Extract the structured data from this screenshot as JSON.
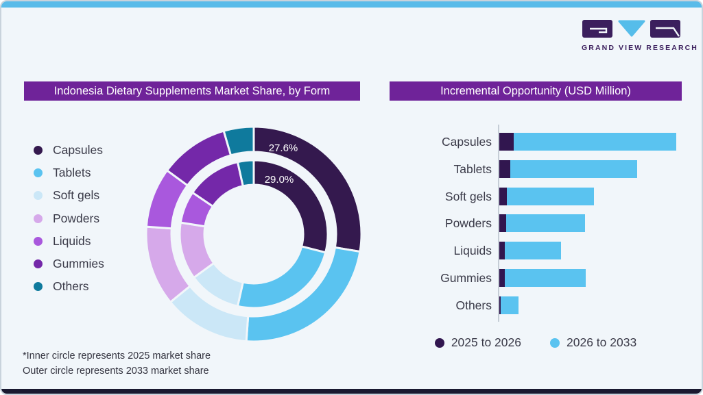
{
  "brand": {
    "logo_text": "GRAND VIEW RESEARCH"
  },
  "colors": {
    "background": "#f1f6fa",
    "top_strip": "#59bbe9",
    "bottom_strip": "#191930",
    "title_bar_bg": "#6f2399",
    "title_bar_text": "#ffffff",
    "logo_purple": "#3b1f5d",
    "logo_blue": "#56bdea",
    "text_dark": "#3b3b49",
    "footnote_text": "#33333f",
    "axis_line": "#c5cdd6"
  },
  "panels": {
    "donut": {
      "title": "Indonesia Dietary Supplements Market Share, by Form",
      "footnote1": "*Inner circle represents 2025 market share",
      "footnote2": "Outer circle represents 2033 market share"
    },
    "bars": {
      "title": "Incremental Opportunity (USD Million)"
    }
  },
  "chart_data": [
    {
      "type": "pie",
      "subtype": "double-ring-donut",
      "title": "Indonesia Dietary Supplements Market Share, by Form",
      "categories": [
        "Capsules",
        "Tablets",
        "Soft gels",
        "Powders",
        "Liquids",
        "Gummies",
        "Others"
      ],
      "slice_colors": [
        "#34194e",
        "#5ac3f0",
        "#cbe7f7",
        "#d6a9ea",
        "#a958dd",
        "#7428a9",
        "#0f7a9d"
      ],
      "rings": [
        {
          "name": "2033 market share (outer circle)",
          "values_percent": [
            27.6,
            23.5,
            13.0,
            12.0,
            9.0,
            10.4,
            4.5
          ],
          "labeled_value": {
            "category": "Capsules",
            "text": "27.6%"
          }
        },
        {
          "name": "2025 market share (inner circle)",
          "values_percent": [
            29.0,
            24.5,
            11.5,
            12.5,
            7.0,
            12.0,
            3.5
          ],
          "labeled_value": {
            "category": "Capsules",
            "text": "29.0%"
          }
        }
      ],
      "shown_labels": [
        "27.6%",
        "29.0%"
      ],
      "layout": {
        "start_angle_deg": 0,
        "direction": "clockwise",
        "legend_position": "left"
      },
      "note": "only Capsules slices carry data labels; other ring values estimated from arc angles"
    },
    {
      "type": "bar",
      "orientation": "horizontal",
      "stacked": true,
      "title": "Incremental Opportunity (USD Million)",
      "categories": [
        "Capsules",
        "Tablets",
        "Soft gels",
        "Powders",
        "Liquids",
        "Gummies",
        "Others"
      ],
      "series": [
        {
          "name": "2025 to 2026",
          "color": "#31164f",
          "values_relative": [
            8.2,
            6.2,
            4.3,
            3.9,
            3.0,
            3.0,
            0.8
          ]
        },
        {
          "name": "2026 to 2033",
          "color": "#5ac3f0",
          "values_relative": [
            91.8,
            71.8,
            49.2,
            44.6,
            31.8,
            45.8,
            10.1
          ]
        }
      ],
      "axis": {
        "numeric_labels_shown": false,
        "scale_note": "relative units estimated from bar lengths, longest total bar (Capsules) = 100"
      },
      "legend": [
        "2025 to 2026",
        "2026 to 2033"
      ],
      "layout": {
        "legend_position": "bottom"
      }
    }
  ]
}
